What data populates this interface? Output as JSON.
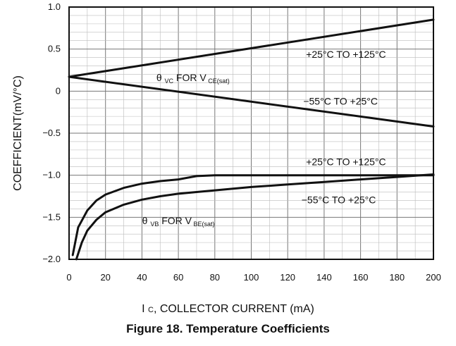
{
  "chart_data": {
    "type": "line",
    "xlim": [
      0,
      200
    ],
    "ylim": [
      -2.0,
      1.0
    ],
    "x_ticks": [
      "0",
      "20",
      "40",
      "60",
      "80",
      "100",
      "120",
      "140",
      "160",
      "180",
      "200"
    ],
    "y_ticks": [
      "1.0",
      "0.5",
      "0",
      "−0.5",
      "−1.0",
      "−1.5",
      "−2.0"
    ],
    "ylabel": "COEFFICIENT(mV/°C)",
    "xlabel": {
      "symbol": "I",
      "subscript": "C",
      "text": ", COLLECTOR CURRENT (mA)"
    },
    "grid": true,
    "series": [
      {
        "name": "+25°C TO +125°C",
        "group": "θVC FOR VCE(sat)",
        "x": [
          0,
          200
        ],
        "y": [
          0.17,
          0.85
        ]
      },
      {
        "name": "−55°C TO +25°C",
        "group": "θVC FOR VCE(sat)",
        "x": [
          0,
          200
        ],
        "y": [
          0.17,
          -0.42
        ]
      },
      {
        "name": "+25°C TO +125°C",
        "group": "θVB FOR VBE(sat)",
        "x": [
          2,
          5,
          10,
          15,
          20,
          30,
          40,
          50,
          60,
          70,
          80,
          100,
          120,
          140,
          160,
          180,
          200
        ],
        "y": [
          -1.95,
          -1.62,
          -1.42,
          -1.3,
          -1.23,
          -1.15,
          -1.1,
          -1.07,
          -1.05,
          -1.01,
          -1.0,
          -1.0,
          -1.0,
          -1.0,
          -1.0,
          -1.0,
          -1.0
        ]
      },
      {
        "name": "−55°C TO +25°C",
        "group": "θVB FOR VBE(sat)",
        "x": [
          4,
          7,
          10,
          15,
          20,
          30,
          40,
          50,
          60,
          70,
          80,
          100,
          120,
          140,
          160,
          180,
          200
        ],
        "y": [
          -2.0,
          -1.8,
          -1.66,
          -1.53,
          -1.44,
          -1.35,
          -1.29,
          -1.25,
          -1.22,
          -1.2,
          -1.18,
          -1.14,
          -1.11,
          -1.08,
          -1.05,
          -1.02,
          -0.99
        ]
      }
    ],
    "annotations": [
      {
        "text": "+25°C TO +125°C",
        "x": 152,
        "y": 0.44
      },
      {
        "text": "−55°C TO +25°C",
        "x": 149,
        "y": -0.12
      },
      {
        "text": "+25°C TO +125°C",
        "x": 152,
        "y": -0.84
      },
      {
        "text": "−55°C TO +25°C",
        "x": 148,
        "y": -1.29
      },
      {
        "theta": "θ",
        "sub1": "VC",
        "mid": " FOR V",
        "sub2": "CE(sat)",
        "x": 68,
        "y": 0.16
      },
      {
        "theta": "θ",
        "sub1": "VB",
        "mid": " FOR V",
        "sub2": "BE(sat)",
        "x": 60,
        "y": -1.54
      }
    ],
    "caption": "Figure 18. Temperature Coefficients"
  }
}
